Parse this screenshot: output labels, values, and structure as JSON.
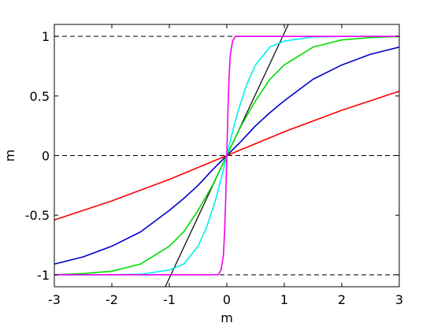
{
  "chart_data": {
    "type": "line",
    "title": "",
    "xlabel": "m",
    "ylabel": "m",
    "xlim": [
      -3,
      3
    ],
    "ylim": [
      -1.1,
      1.1
    ],
    "xticks": [
      -3,
      -2,
      -1,
      0,
      1,
      2,
      3
    ],
    "yticks": [
      -1,
      -0.5,
      0,
      0.5,
      1
    ],
    "xtick_labels": [
      "-3",
      "-2",
      "-1",
      "0",
      "1",
      "2",
      "3"
    ],
    "ytick_labels": [
      "-1",
      "-0.5",
      "0",
      "0.5",
      "1"
    ],
    "grid": false,
    "reference_lines": [
      {
        "y": 1,
        "style": "dashed",
        "color": "#000000"
      },
      {
        "y": 0,
        "style": "dashed",
        "color": "#000000"
      },
      {
        "y": -1,
        "style": "dashed",
        "color": "#000000"
      }
    ],
    "series": [
      {
        "color": "#000000",
        "x": [
          -1.07,
          1.07
        ],
        "y": [
          -1.1,
          1.1
        ]
      },
      {
        "color": "#ff0000",
        "x": [
          -3,
          -2.5,
          -2,
          -1.5,
          -1,
          -0.5,
          0,
          0.5,
          1,
          1.5,
          2,
          2.5,
          3
        ],
        "y": [
          -0.54,
          -0.46,
          -0.38,
          -0.29,
          -0.2,
          -0.1,
          0,
          0.1,
          0.2,
          0.29,
          0.38,
          0.46,
          0.54
        ]
      },
      {
        "color": "#0000cc",
        "x": [
          -3,
          -2.5,
          -2,
          -1.5,
          -1,
          -0.75,
          -0.5,
          -0.25,
          0,
          0.25,
          0.5,
          0.75,
          1,
          1.5,
          2,
          2.5,
          3
        ],
        "y": [
          -0.91,
          -0.85,
          -0.76,
          -0.64,
          -0.46,
          -0.36,
          -0.25,
          -0.12,
          0,
          0.12,
          0.25,
          0.36,
          0.46,
          0.64,
          0.76,
          0.85,
          0.91
        ]
      },
      {
        "color": "#00dd00",
        "x": [
          -3,
          -2.5,
          -2,
          -1.5,
          -1,
          -0.75,
          -0.5,
          -0.25,
          0,
          0.25,
          0.5,
          0.75,
          1,
          1.5,
          2,
          2.5,
          3
        ],
        "y": [
          -1.0,
          -0.99,
          -0.97,
          -0.91,
          -0.76,
          -0.64,
          -0.46,
          -0.25,
          0,
          0.25,
          0.46,
          0.64,
          0.76,
          0.91,
          0.97,
          0.99,
          1.0
        ]
      },
      {
        "color": "#00eeee",
        "x": [
          -3,
          -2,
          -1.5,
          -1,
          -0.75,
          -0.5,
          -0.35,
          -0.2,
          -0.1,
          0,
          0.1,
          0.2,
          0.35,
          0.5,
          0.75,
          1,
          1.5,
          2,
          3
        ],
        "y": [
          -1.0,
          -1.0,
          -0.995,
          -0.96,
          -0.91,
          -0.76,
          -0.6,
          -0.38,
          -0.2,
          0,
          0.2,
          0.38,
          0.6,
          0.76,
          0.91,
          0.96,
          0.995,
          1.0,
          1.0
        ]
      },
      {
        "color": "#ee00ee",
        "x": [
          -3,
          -0.15,
          -0.1,
          -0.06,
          -0.04,
          -0.02,
          0,
          0.02,
          0.04,
          0.06,
          0.1,
          0.15,
          3
        ],
        "y": [
          -1.0,
          -1.0,
          -0.96,
          -0.84,
          -0.66,
          -0.38,
          0,
          0.38,
          0.66,
          0.84,
          0.96,
          1.0,
          1.0
        ]
      }
    ]
  }
}
